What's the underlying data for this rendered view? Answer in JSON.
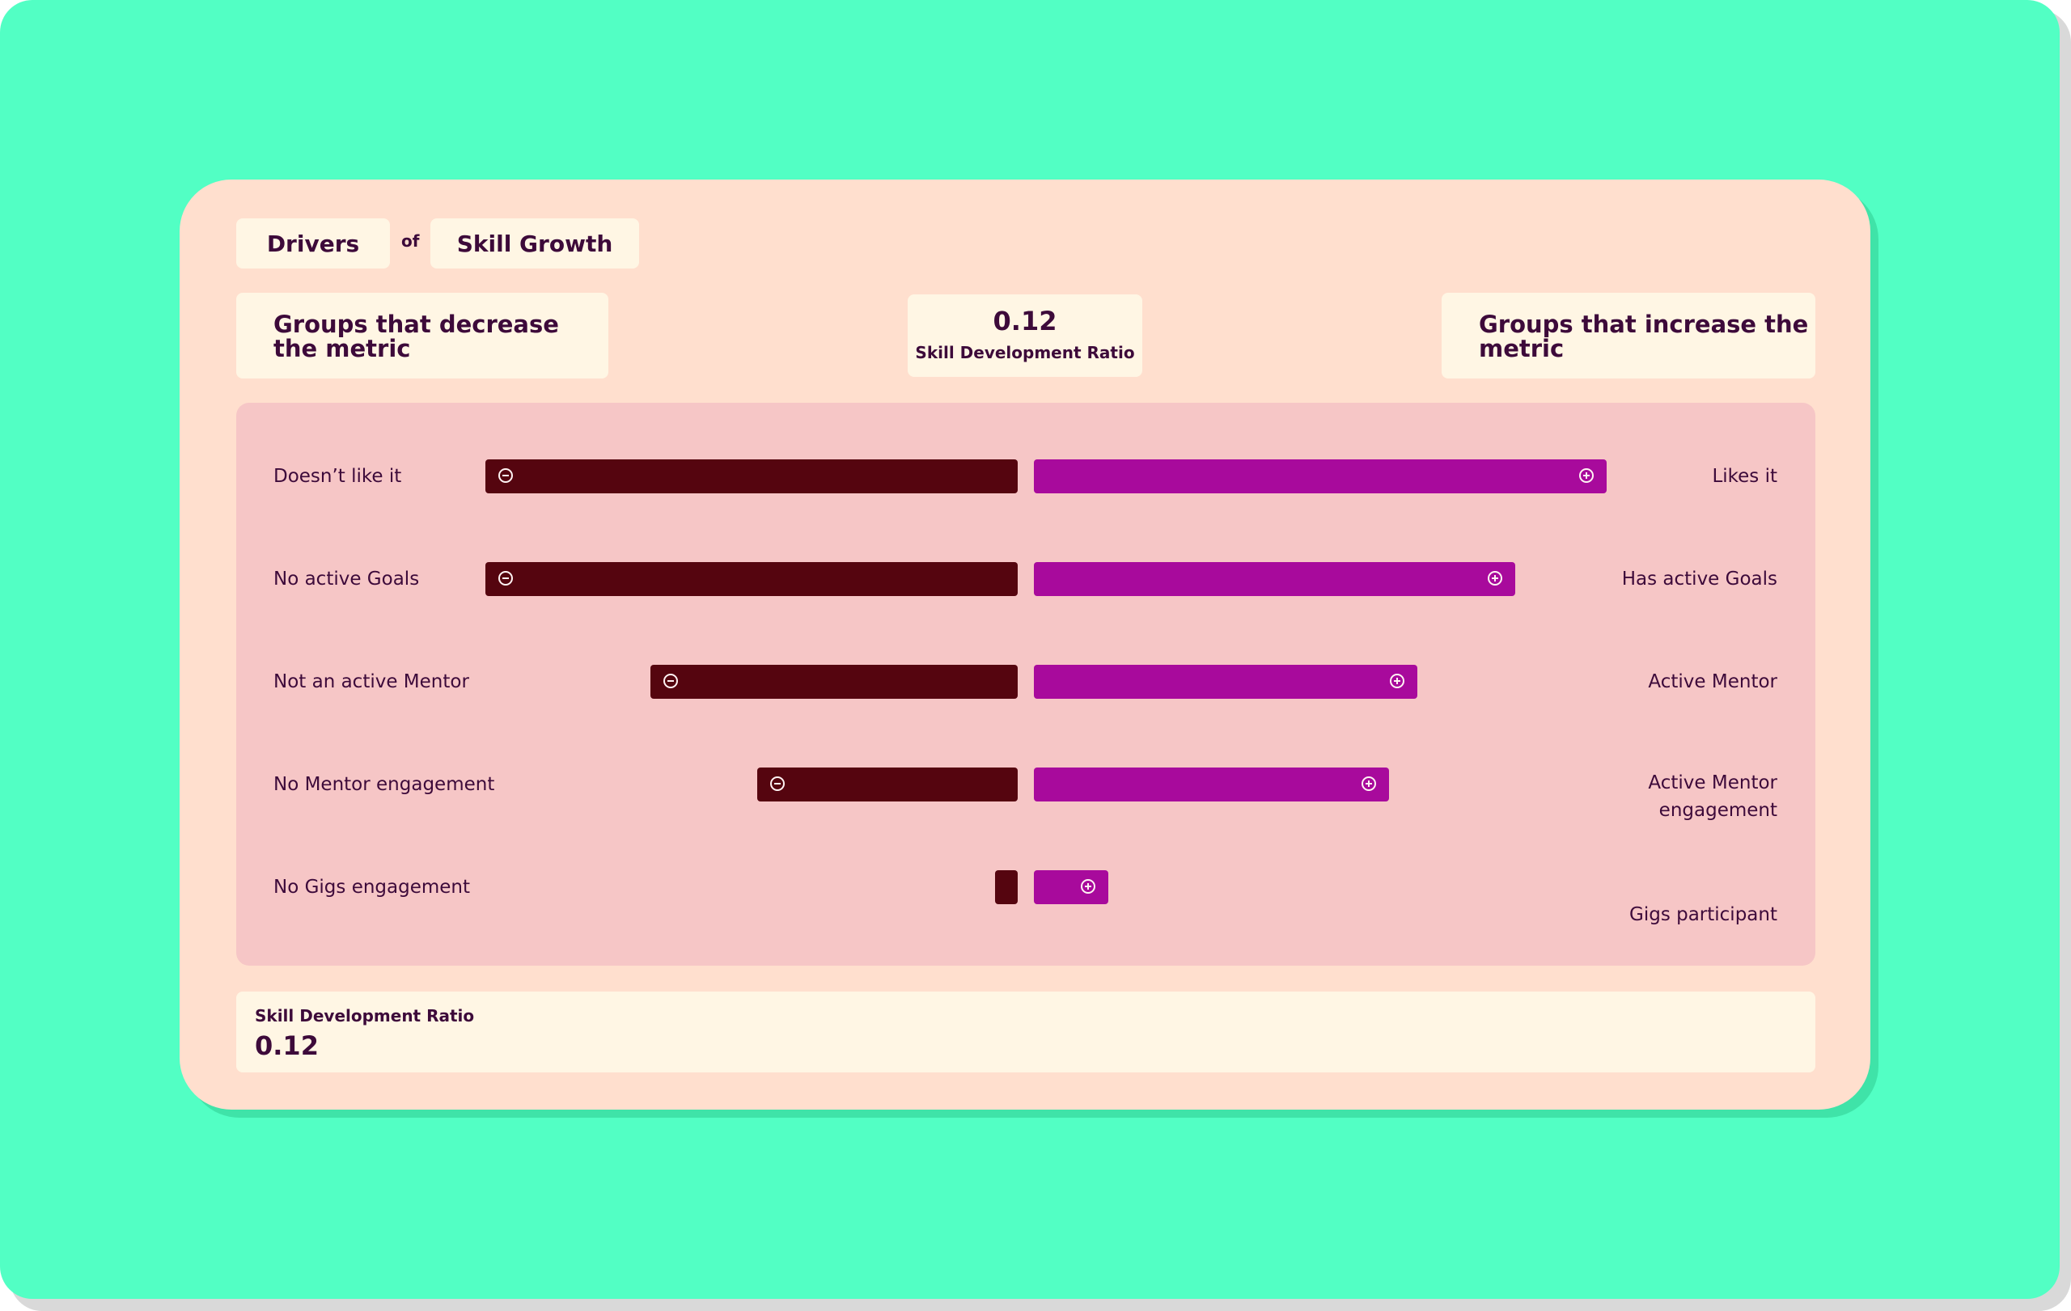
{
  "header": {
    "drivers_label": "Drivers",
    "of_label": "of",
    "metric_name": "Skill Growth"
  },
  "columns": {
    "decrease_title": "Groups that decrease the metric",
    "increase_title": "Groups that increase the metric"
  },
  "center_metric": {
    "value": "0.12",
    "label": "Skill Development Ratio"
  },
  "chart_data": {
    "type": "bar",
    "description_axis": "diverging",
    "rows": [
      {
        "negative_label": "Doesn’t like it",
        "positive_label": "Likes it",
        "negative_value": 1.0,
        "positive_value": 1.0
      },
      {
        "negative_label": "No active Goals",
        "positive_label": "Has active Goals",
        "negative_value": 1.0,
        "positive_value": 0.84
      },
      {
        "negative_label": "Not an active Mentor",
        "positive_label": "Active Mentor",
        "negative_value": 0.69,
        "positive_value": 0.67
      },
      {
        "negative_label": "No Mentor engagement",
        "positive_label": "Active Mentor engagement",
        "negative_value": 0.49,
        "positive_value": 0.62
      },
      {
        "negative_label": "No Gigs engagement",
        "positive_label": "Gigs participant",
        "negative_value": 0.04,
        "positive_value": 0.13
      }
    ],
    "colors": {
      "negative": "#55050f",
      "positive": "#a80a9c"
    }
  },
  "footer": {
    "label": "Skill Development Ratio",
    "value": "0.12"
  },
  "colors": {
    "background": "#52ffc4",
    "card": "#ffdfce",
    "chip": "#fff6e4",
    "chart_area": "#f6c6c6",
    "text": "#3d0a3a"
  },
  "icons": {
    "negative": "minus-circle-icon",
    "positive": "plus-circle-icon"
  }
}
